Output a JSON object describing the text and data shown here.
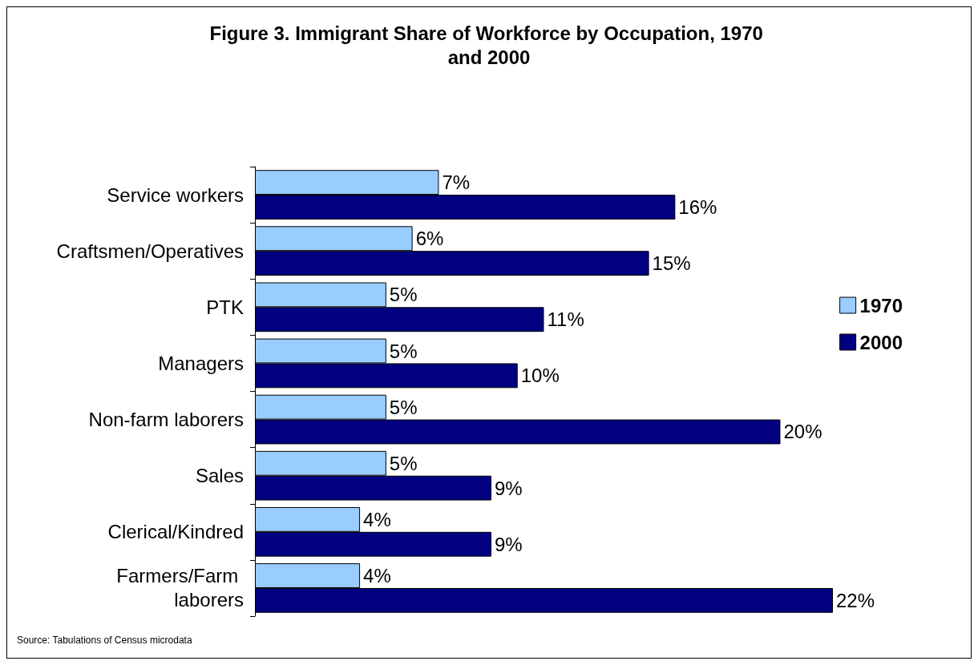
{
  "chart_data": {
    "type": "bar",
    "orientation": "horizontal",
    "title": "Figure 3. Immigrant Share of Workforce by Occupation, 1970 and 2000",
    "categories": [
      "Service workers",
      "Craftsmen/Operatives",
      "PTK",
      "Managers",
      "Non-farm laborers",
      "Sales",
      "Clerical/Kindred",
      "Farmers/Farm laborers"
    ],
    "series": [
      {
        "name": "1970",
        "color": "#99ccff",
        "values": [
          7,
          6,
          5,
          5,
          5,
          5,
          4,
          4
        ],
        "value_labels": [
          "7%",
          "6%",
          "5%",
          "5%",
          "5%",
          "5%",
          "4%",
          "4%"
        ]
      },
      {
        "name": "2000",
        "color": "#000080",
        "values": [
          16,
          15,
          11,
          10,
          20,
          9,
          9,
          22
        ],
        "value_labels": [
          "16%",
          "15%",
          "11%",
          "10%",
          "20%",
          "9%",
          "9%",
          "22%"
        ]
      }
    ],
    "legend": "right",
    "annotations": [
      "Source: Tabulations of Census microdata"
    ]
  }
}
